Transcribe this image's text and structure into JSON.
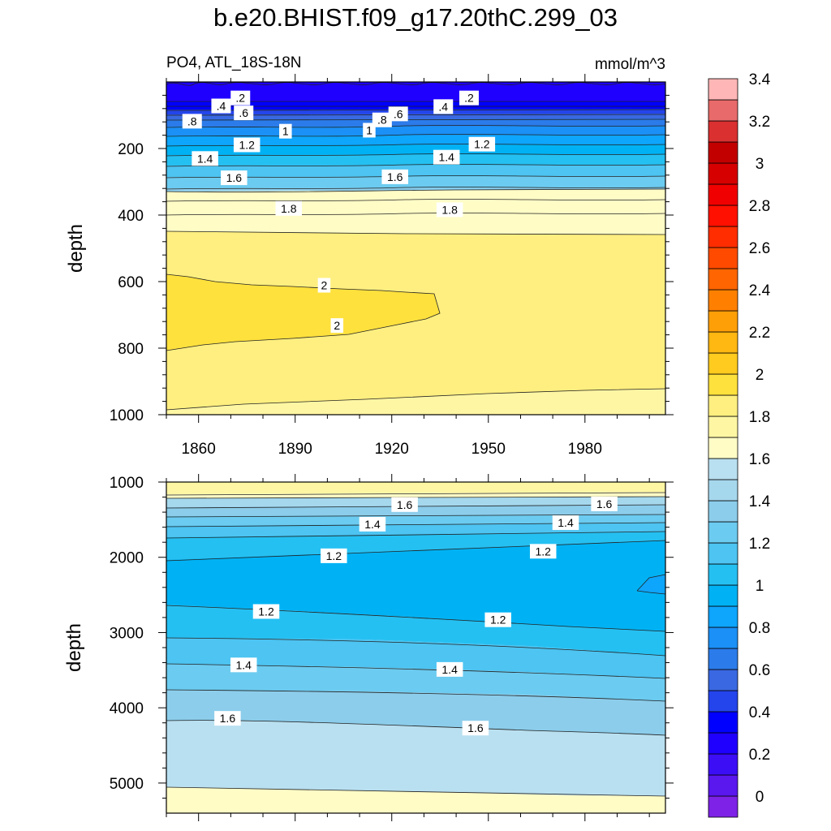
{
  "figure_title": "b.e20.BHIST.f09_g17.20thC.299_03",
  "chart_data": [
    {
      "type": "heatmap",
      "title": "PO4, ATL_18S-18N",
      "units": "mmol/m^3",
      "ylabel": "depth",
      "xlabel": "",
      "xlim": [
        1850,
        2005
      ],
      "ylim": [
        0,
        1000
      ],
      "y_inverted": true,
      "xticks": [
        1860,
        1890,
        1920,
        1950,
        1980
      ],
      "xtick_labels": [
        "1860",
        "1890",
        "1920",
        "1950",
        "1980"
      ],
      "yticks": [
        200,
        400,
        600,
        800,
        1000
      ],
      "ytick_labels": [
        "200",
        "400",
        "600",
        "800",
        "1000"
      ],
      "contour_labels": [
        {
          "text": ".2",
          "x": 1873,
          "y": 48
        },
        {
          "text": ".2",
          "x": 1944,
          "y": 48
        },
        {
          "text": ".4",
          "x": 1867,
          "y": 72
        },
        {
          "text": ".4",
          "x": 1936,
          "y": 74
        },
        {
          "text": ".6",
          "x": 1874,
          "y": 93
        },
        {
          "text": ".6",
          "x": 1922,
          "y": 96
        },
        {
          "text": ".8",
          "x": 1858,
          "y": 118
        },
        {
          "text": ".8",
          "x": 1917,
          "y": 114
        },
        {
          "text": "1",
          "x": 1887,
          "y": 148
        },
        {
          "text": "1",
          "x": 1913,
          "y": 145
        },
        {
          "text": "1.2",
          "x": 1875,
          "y": 189
        },
        {
          "text": "1.2",
          "x": 1948,
          "y": 187
        },
        {
          "text": "1.4",
          "x": 1862,
          "y": 230
        },
        {
          "text": "1.4",
          "x": 1937,
          "y": 226
        },
        {
          "text": "1.6",
          "x": 1871,
          "y": 288
        },
        {
          "text": "1.6",
          "x": 1921,
          "y": 285
        },
        {
          "text": "1.8",
          "x": 1888,
          "y": 380
        },
        {
          "text": "1.8",
          "x": 1938,
          "y": 384
        },
        {
          "text": "2",
          "x": 1899,
          "y": 611
        },
        {
          "text": "2",
          "x": 1903,
          "y": 732
        }
      ]
    },
    {
      "type": "heatmap",
      "title": "",
      "units": "mmol/m^3",
      "ylabel": "depth",
      "xlabel": "",
      "xlim": [
        1850,
        2005
      ],
      "ylim": [
        1000,
        5400
      ],
      "y_inverted": true,
      "xticks": [
        1860,
        1890,
        1920,
        1950,
        1980
      ],
      "yticks": [
        1000,
        2000,
        3000,
        4000,
        5000
      ],
      "ytick_labels": [
        "1000",
        "2000",
        "3000",
        "4000",
        "5000"
      ],
      "contour_labels": [
        {
          "text": "1.6",
          "x": 1924,
          "y": 1300
        },
        {
          "text": "1.6",
          "x": 1986,
          "y": 1290
        },
        {
          "text": "1.4",
          "x": 1914,
          "y": 1560
        },
        {
          "text": "1.4",
          "x": 1974,
          "y": 1540
        },
        {
          "text": "1.2",
          "x": 1902,
          "y": 1980
        },
        {
          "text": "1.2",
          "x": 1967,
          "y": 1920
        },
        {
          "text": "1.2",
          "x": 1881,
          "y": 2720
        },
        {
          "text": "1.2",
          "x": 1953,
          "y": 2830
        },
        {
          "text": "1.4",
          "x": 1874,
          "y": 3430
        },
        {
          "text": "1.4",
          "x": 1938,
          "y": 3490
        },
        {
          "text": "1.6",
          "x": 1869,
          "y": 4140
        },
        {
          "text": "1.6",
          "x": 1946,
          "y": 4270
        }
      ]
    }
  ],
  "colorbar": {
    "colors": [
      "#7d22e6",
      "#5a17ee",
      "#3c0ef6",
      "#1f00ff",
      "#0000ff",
      "#2444ec",
      "#3a68e2",
      "#2b7bea",
      "#1b90f6",
      "#0ea5fc",
      "#00b2f4",
      "#25c0f2",
      "#4dc4f2",
      "#6ccbf0",
      "#8ccdeb",
      "#a6d8ed",
      "#b9e0f0",
      "#fffcc6",
      "#fff6a3",
      "#ffef80",
      "#ffe13d",
      "#ffcb1e",
      "#ffb712",
      "#ff9f08",
      "#ff8000",
      "#ff6500",
      "#ff4a00",
      "#ff2d00",
      "#ff1000",
      "#f00000",
      "#d60000",
      "#c20000",
      "#da3030",
      "#e86a6a",
      "#ffb6b6"
    ],
    "tick_labels": [
      "0",
      "0.2",
      "0.4",
      "0.6",
      "0.8",
      "1",
      "1.2",
      "1.4",
      "1.6",
      "1.8",
      "2",
      "2.2",
      "2.4",
      "2.6",
      "2.8",
      "3",
      "3.2",
      "3.4"
    ]
  }
}
